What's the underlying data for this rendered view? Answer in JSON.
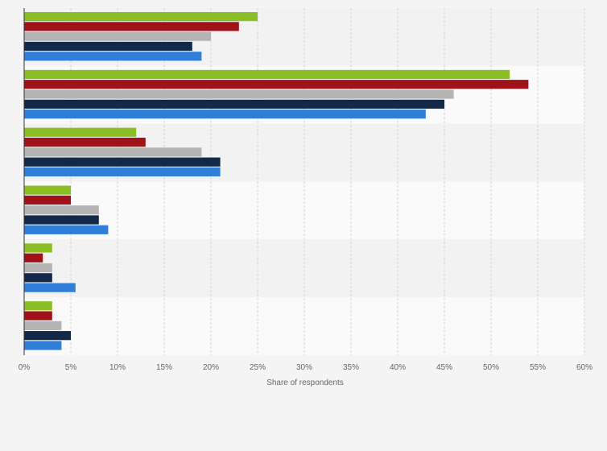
{
  "chart_data": {
    "type": "bar",
    "orientation": "horizontal",
    "categories": [
      "",
      "",
      "",
      "",
      "",
      ""
    ],
    "series": [
      {
        "color": "#8cbf26",
        "values": [
          25,
          52,
          12,
          5,
          3,
          3
        ]
      },
      {
        "color": "#a0121a",
        "values": [
          23,
          54,
          13,
          5,
          2,
          3
        ]
      },
      {
        "color": "#b4b4b4",
        "values": [
          20,
          46,
          19,
          8,
          3,
          4
        ]
      },
      {
        "color": "#12294a",
        "values": [
          18,
          45,
          21,
          8,
          3,
          5
        ]
      },
      {
        "color": "#2f7ed8",
        "values": [
          19,
          43,
          21,
          9,
          5.5,
          4
        ]
      }
    ],
    "xlim": [
      0,
      60
    ],
    "x_ticks": [
      0,
      5,
      10,
      15,
      20,
      25,
      30,
      35,
      40,
      45,
      50,
      55,
      60
    ],
    "x_tick_labels": [
      "0%",
      "5%",
      "10%",
      "15%",
      "20%",
      "25%",
      "30%",
      "35%",
      "40%",
      "45%",
      "50%",
      "55%",
      "60%"
    ],
    "xlabel": "Share of respondents",
    "grid": true
  }
}
